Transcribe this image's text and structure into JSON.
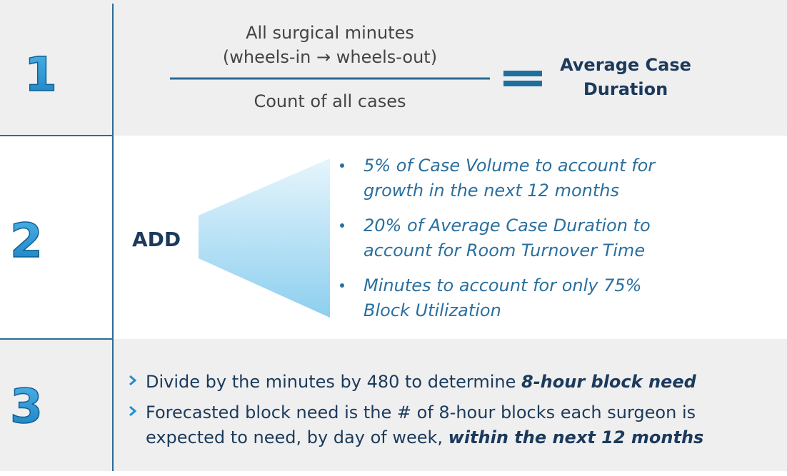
{
  "steps": [
    {
      "number": "1",
      "numerator": [
        "All surgical minutes",
        "(wheels-in → wheels-out)"
      ],
      "denominator": "Count of all cases",
      "result": [
        "Average Case",
        "Duration"
      ]
    },
    {
      "number": "2",
      "label": "ADD",
      "bullets": [
        [
          "5% of Case Volume to account for",
          "growth in the next 12 months"
        ],
        [
          "20% of Average Case Duration to",
          "account for Room Turnover Time"
        ],
        [
          "Minutes to account for only 75%",
          "Block Utilization"
        ]
      ]
    },
    {
      "number": "3",
      "bullets": [
        {
          "lines": [
            "Divide by the minutes by 480 to determine "
          ],
          "emphasis": "8-hour block need"
        },
        {
          "lines": [
            "Forecasted block need is the # of 8-hour blocks each surgeon is",
            "expected to need, by day of week, "
          ],
          "emphasis": "within the next 12 months"
        }
      ]
    }
  ]
}
